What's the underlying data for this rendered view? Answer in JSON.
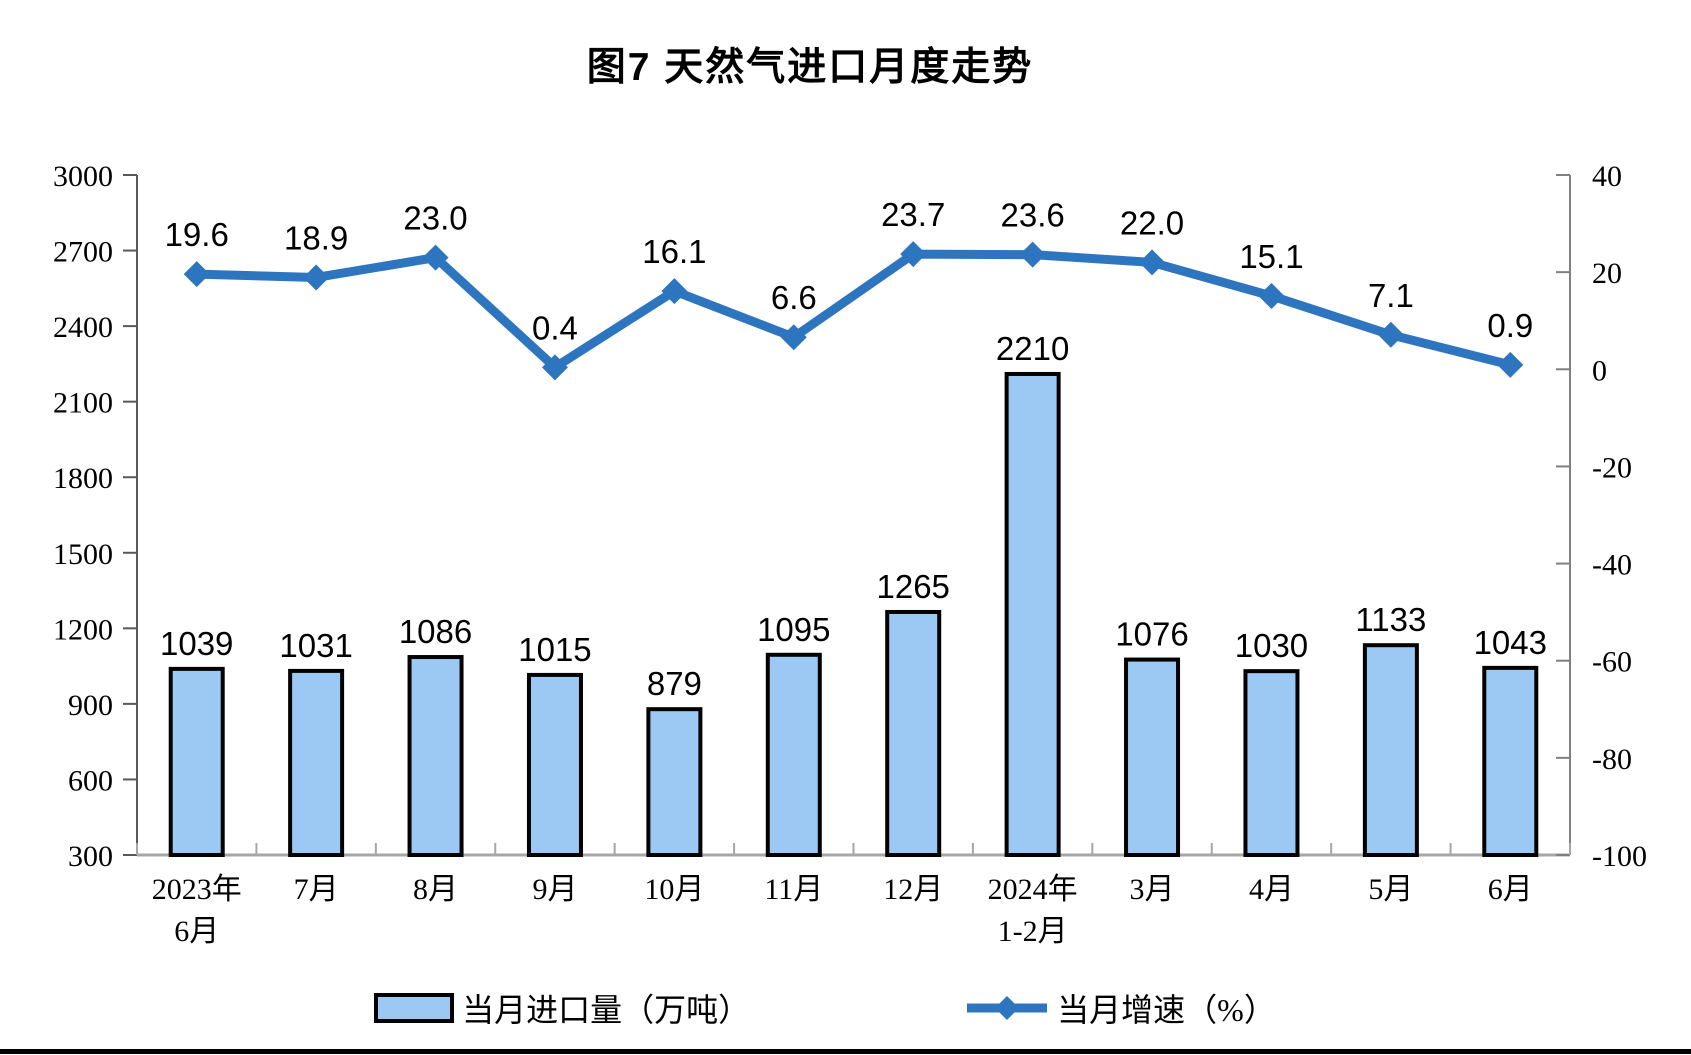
{
  "title": "图7 天然气进口月度走势",
  "legend": {
    "bars_label": "当月进口量（万吨）",
    "line_label": "当月增速（%）"
  },
  "chart_data": {
    "type": "bar+line combo",
    "title": "图7 天然气进口月度走势",
    "categories": [
      [
        "2023年",
        "6月"
      ],
      [
        "7月"
      ],
      [
        "8月"
      ],
      [
        "9月"
      ],
      [
        "10月"
      ],
      [
        "11月"
      ],
      [
        "12月"
      ],
      [
        "2024年",
        "1-2月"
      ],
      [
        "3月"
      ],
      [
        "4月"
      ],
      [
        "5月"
      ],
      [
        "6月"
      ]
    ],
    "series": [
      {
        "name": "当月进口量（万吨）",
        "type": "bar",
        "axis": "left",
        "values": [
          1039,
          1031,
          1086,
          1015,
          879,
          1095,
          1265,
          2210,
          1076,
          1030,
          1133,
          1043
        ],
        "labels": [
          "1039",
          "1031",
          "1086",
          "1015",
          "879",
          "1095",
          "1265",
          "2210",
          "1076",
          "1030",
          "1133",
          "1043"
        ]
      },
      {
        "name": "当月增速（%）",
        "type": "line",
        "axis": "right",
        "values": [
          19.6,
          18.9,
          23.0,
          0.4,
          16.1,
          6.6,
          23.7,
          23.6,
          22.0,
          15.1,
          7.1,
          0.9
        ],
        "labels": [
          "19.6",
          "18.9",
          "23.0",
          "0.4",
          "16.1",
          "6.6",
          "23.7",
          "23.6",
          "22.0",
          "15.1",
          "7.1",
          "0.9"
        ]
      }
    ],
    "left_axis": {
      "min": 300,
      "max": 3000,
      "ticks": [
        3000,
        2700,
        2400,
        2100,
        1800,
        1500,
        1200,
        900,
        600,
        300
      ]
    },
    "right_axis": {
      "min": -100,
      "max": 40,
      "ticks": [
        40,
        20,
        0,
        -20,
        -40,
        -60,
        -80,
        -100
      ]
    },
    "grid": "off",
    "legend_position": "bottom",
    "colors": {
      "bar_fill": "#9CC9F3",
      "bar_stroke": "#000000",
      "line": "#2E75C0",
      "axis_left": "#595959",
      "axis_right": "#808080",
      "axis_bottom": "#A6A6A6",
      "text": "#000000"
    }
  }
}
